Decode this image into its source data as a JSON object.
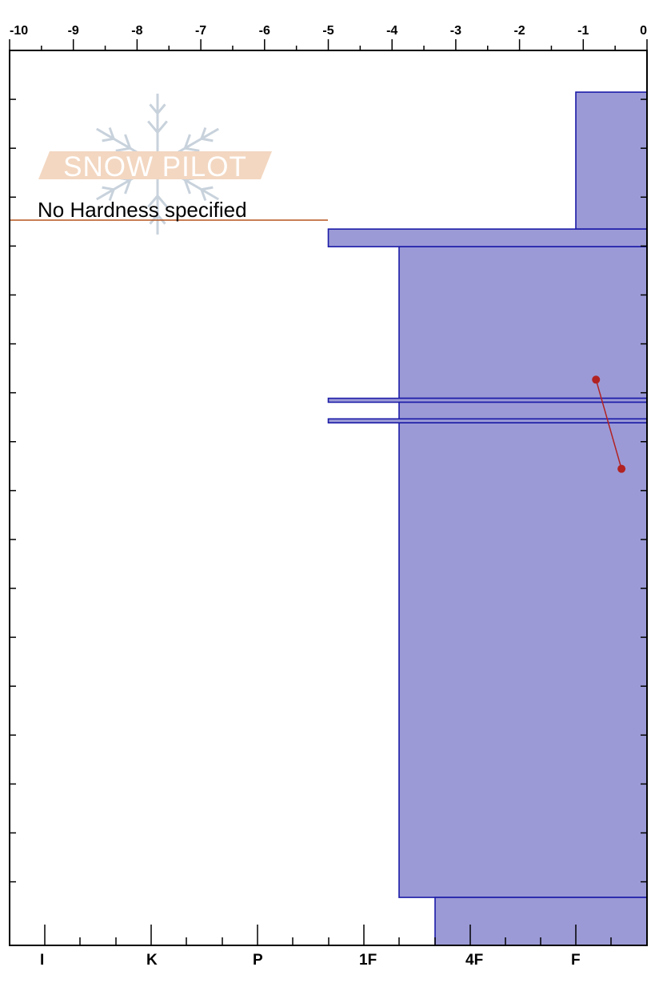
{
  "chart_data": {
    "type": "snow-profile",
    "top_axis": {
      "ticks": [
        "-10",
        "-9",
        "-8",
        "-7",
        "-6",
        "-5",
        "-4",
        "-3",
        "-2",
        "-1",
        "0"
      ],
      "range": [
        -10,
        0
      ]
    },
    "bottom_axis": {
      "ticks": [
        "I",
        "K",
        "P",
        "1F",
        "4F",
        "F"
      ],
      "hardness_scale": [
        "I",
        "K",
        "P",
        "1F",
        "4F",
        "F"
      ]
    },
    "logo_text": "SNOW PILOT",
    "annotation": "No Hardness specified",
    "colors": {
      "layer_fill": "#9b9ad6",
      "layer_stroke": "#1c1ca8",
      "temperature": "#b22222",
      "no_hardness_line": "#b5541f",
      "axis": "#000000",
      "logo_band": "#f3d7c1",
      "logo_snowflake": "#c8d2dc"
    },
    "layers": [
      {
        "hardness": "F",
        "from_top_fraction": 0.0466,
        "to_top_fraction": 0.1996
      },
      {
        "hardness": "1F",
        "from_top_fraction": 0.1996,
        "to_top_fraction": 0.2193
      },
      {
        "hardness": "1F-",
        "from_top_fraction": 0.2193,
        "to_top_fraction": 0.3887
      },
      {
        "hardness": "1F",
        "from_top_fraction": 0.3887,
        "to_top_fraction": 0.3931
      },
      {
        "hardness": "1F-",
        "from_top_fraction": 0.3931,
        "to_top_fraction": 0.4117
      },
      {
        "hardness": "1F",
        "from_top_fraction": 0.4117,
        "to_top_fraction": 0.4161
      },
      {
        "hardness": "1F-",
        "from_top_fraction": 0.4161,
        "to_top_fraction": 0.9464
      },
      {
        "hardness": "4F+",
        "from_top_fraction": 0.9464,
        "to_top_fraction": 1.0
      }
    ],
    "temperature_profile": [
      {
        "temp": -0.8,
        "from_top_fraction": 0.3679
      },
      {
        "temp": -0.4,
        "from_top_fraction": 0.4675
      }
    ]
  }
}
